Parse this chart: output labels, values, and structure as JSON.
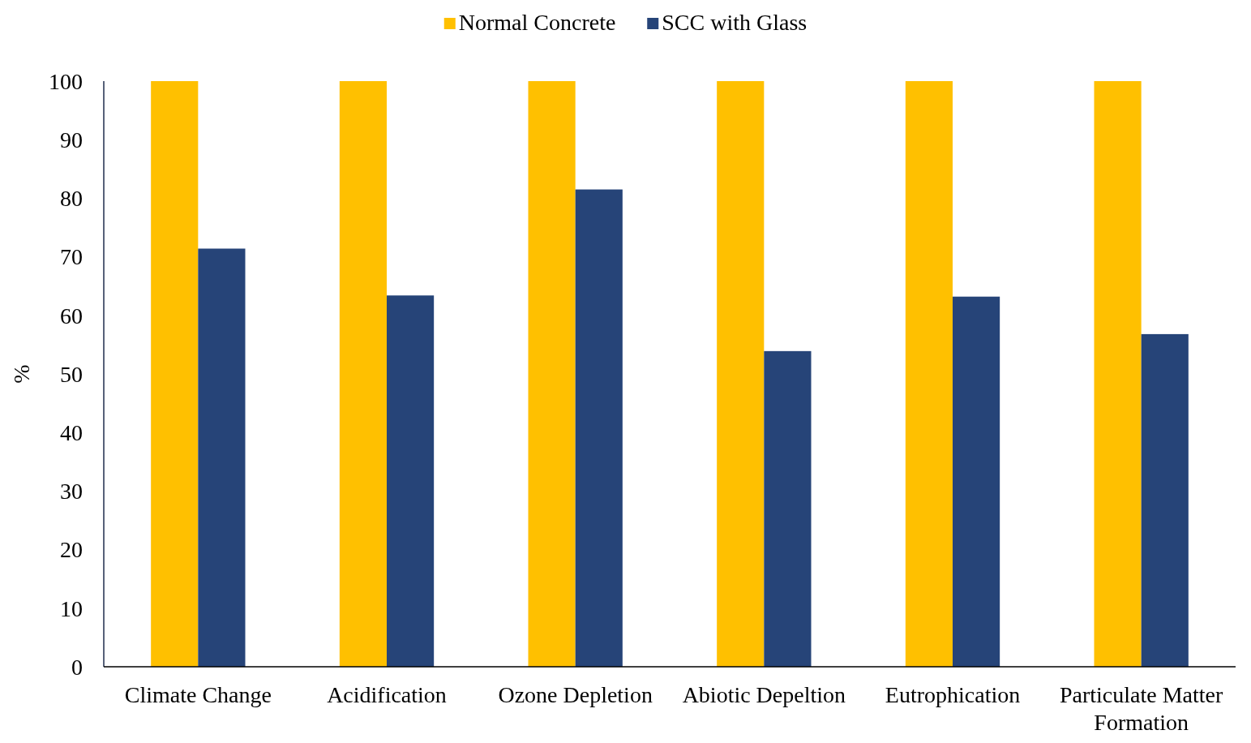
{
  "chart_data": {
    "type": "bar",
    "ylabel": "%",
    "categories": [
      "Climate Change",
      "Acidification",
      "Ozone Depletion",
      "Abiotic Depeltion",
      "Eutrophication",
      "Particulate Matter Formation"
    ],
    "series": [
      {
        "name": "Normal Concrete",
        "color": "#ffc000",
        "values": [
          100,
          100,
          100,
          100,
          100,
          100
        ]
      },
      {
        "name": "SCC with Glass",
        "color": "#264478",
        "values": [
          71.4,
          63.4,
          81.5,
          53.9,
          63.2,
          56.8
        ]
      }
    ],
    "ylim": [
      0,
      100
    ],
    "yticks": [
      0,
      10,
      20,
      30,
      40,
      50,
      60,
      70,
      80,
      90,
      100
    ],
    "grid": false,
    "legend": "top"
  }
}
